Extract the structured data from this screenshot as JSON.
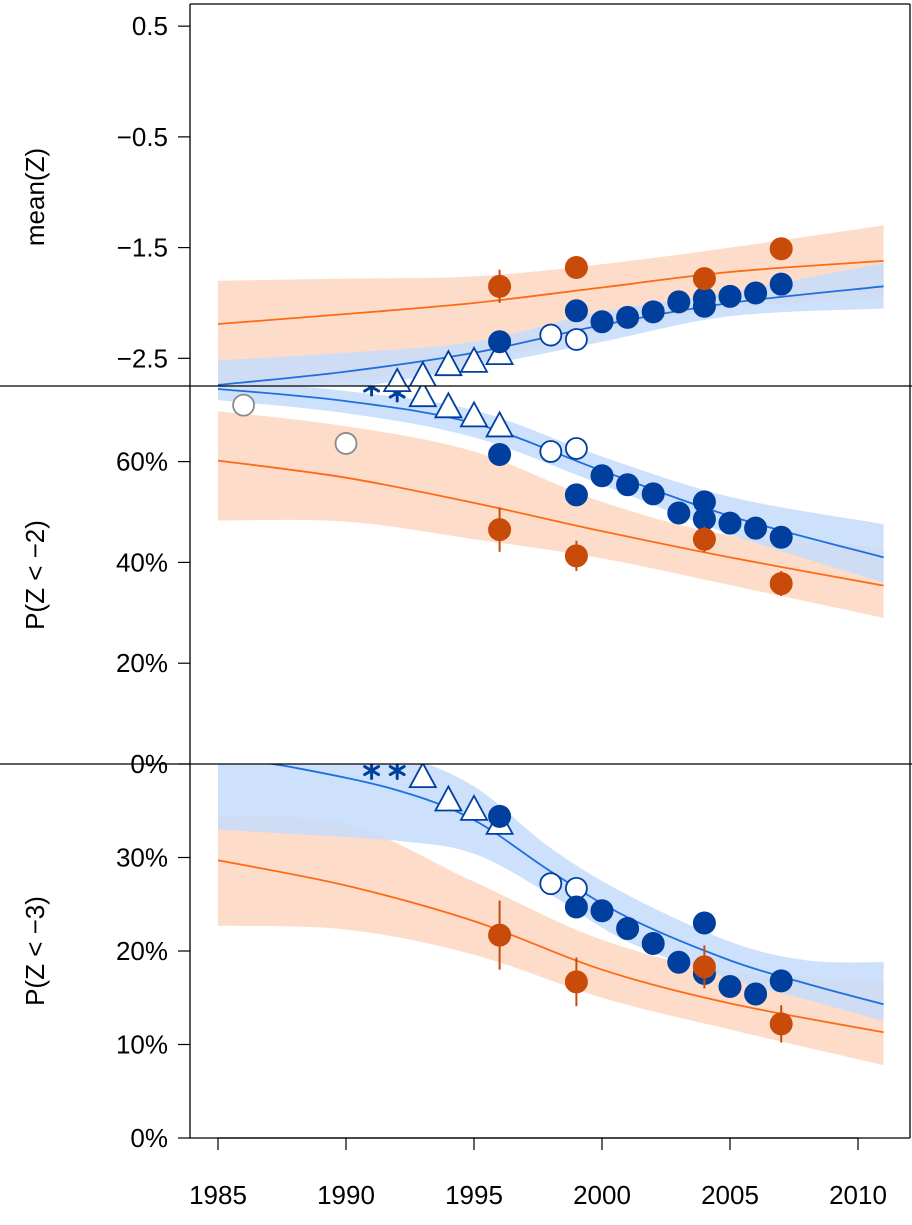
{
  "colors": {
    "blue_line": "#1f6fe0",
    "blue_band": "#c6dcfb",
    "blue_point": "#003f9e",
    "orange_line": "#ff6a13",
    "orange_band": "#fdd5bd",
    "orange_point": "#c84b0a",
    "grey_point": "#8a8a8a",
    "overlap_band": "#a9a7c8"
  },
  "chart_data": [
    {
      "type": "scatter",
      "panel": "top",
      "ylabel": "mean(Z)",
      "y_ticks": [
        "0.5",
        "−0.5",
        "−1.5",
        "−2.5"
      ],
      "y_tick_values": [
        0.5,
        -0.5,
        -1.5,
        -2.5
      ],
      "ylim": [
        -2.75,
        0.7
      ],
      "xlim": [
        1985,
        2011
      ],
      "curves": [
        {
          "color": "blue",
          "x": [
            1985,
            1990,
            1995,
            2000,
            2005,
            2011
          ],
          "y": [
            -2.74,
            -2.62,
            -2.45,
            -2.2,
            -2.0,
            -1.85
          ],
          "band_lo": [
            -2.95,
            -2.78,
            -2.58,
            -2.35,
            -2.12,
            -2.05
          ],
          "band_hi": [
            -2.52,
            -2.45,
            -2.35,
            -2.08,
            -1.9,
            -1.64
          ]
        },
        {
          "color": "orange",
          "x": [
            1985,
            1990,
            1995,
            2000,
            2005,
            2011
          ],
          "y": [
            -2.19,
            -2.1,
            -2.0,
            -1.86,
            -1.72,
            -1.62
          ],
          "band_lo": [
            -2.8,
            -2.7,
            -2.55,
            -2.25,
            -2.05,
            -1.95
          ],
          "band_hi": [
            -1.8,
            -1.78,
            -1.76,
            -1.65,
            -1.5,
            -1.3
          ]
        }
      ],
      "points": [
        {
          "marker": "triangle",
          "color": "blue",
          "x": [
            1992,
            1993,
            1994,
            1995,
            1996
          ],
          "y": [
            -2.73,
            -2.67,
            -2.57,
            -2.54,
            -2.47
          ]
        },
        {
          "marker": "open-circle",
          "color": "blue",
          "x": [
            1998,
            1999
          ],
          "y": [
            -2.29,
            -2.33
          ]
        },
        {
          "marker": "filled-circle",
          "color": "blue",
          "x": [
            1996,
            1999,
            2000,
            2001,
            2002,
            2003,
            2004,
            2004,
            2005,
            2006,
            2007
          ],
          "y": [
            -2.35,
            -2.07,
            -2.17,
            -2.13,
            -2.08,
            -1.99,
            -1.96,
            -2.03,
            -1.94,
            -1.91,
            -1.83
          ]
        },
        {
          "marker": "filled-circle",
          "color": "orange",
          "x": [
            1996,
            1999,
            2004,
            2007
          ],
          "y": [
            -1.85,
            -1.68,
            -1.78,
            -1.51
          ],
          "err": [
            0.15,
            0.07,
            0.07,
            0.06
          ]
        }
      ]
    },
    {
      "type": "scatter",
      "panel": "middle",
      "ylabel": "P(Z < −2)",
      "y_ticks": [
        "60%",
        "40%",
        "20%",
        "0%"
      ],
      "y_tick_values": [
        60,
        40,
        20,
        0
      ],
      "ylim": [
        0,
        75
      ],
      "xlim": [
        1985,
        2011
      ],
      "curves": [
        {
          "color": "blue",
          "x": [
            1985,
            1990,
            1995,
            2000,
            2005,
            2011
          ],
          "y": [
            74.4,
            72.0,
            67.6,
            58.2,
            49.2,
            41.0
          ],
          "band_lo": [
            72.2,
            69.6,
            64.8,
            55.4,
            45.6,
            36.0
          ],
          "band_hi": [
            76.4,
            74.0,
            70.2,
            61.0,
            53.0,
            47.6
          ]
        },
        {
          "color": "orange",
          "x": [
            1985,
            1990,
            1995,
            2000,
            2005,
            2011
          ],
          "y": [
            60.2,
            56.8,
            51.8,
            46.2,
            41.0,
            35.4
          ],
          "band_lo": [
            48.3,
            48.1,
            44.6,
            40.8,
            35.5,
            29.0
          ],
          "band_hi": [
            70.0,
            67.0,
            62.0,
            52.0,
            45.4,
            43.0
          ]
        }
      ],
      "points": [
        {
          "marker": "open-circle",
          "color": "grey",
          "x": [
            1986,
            1990
          ],
          "y": [
            71.2,
            63.6
          ],
          "err": [
            0,
            1.8
          ]
        },
        {
          "marker": "star",
          "color": "blue",
          "x": [
            1991,
            1992
          ],
          "y": [
            74.8,
            73.6
          ]
        },
        {
          "marker": "triangle",
          "color": "blue",
          "x": [
            1992,
            1993,
            1994,
            1995,
            1996
          ],
          "y": [
            75.8,
            72.8,
            70.6,
            68.8,
            66.8
          ]
        },
        {
          "marker": "open-circle",
          "color": "blue",
          "x": [
            1998,
            1999
          ],
          "y": [
            62.0,
            62.6
          ]
        },
        {
          "marker": "filled-circle",
          "color": "blue",
          "x": [
            1996,
            1999,
            2000,
            2001,
            2002,
            2003,
            2004,
            2004,
            2005,
            2006,
            2007
          ],
          "y": [
            61.4,
            53.4,
            57.2,
            55.4,
            53.6,
            49.8,
            52.0,
            48.6,
            47.8,
            46.8,
            45.0
          ]
        },
        {
          "marker": "filled-circle",
          "color": "orange",
          "x": [
            1996,
            1999,
            2004,
            2007
          ],
          "y": [
            46.5,
            41.3,
            44.6,
            35.8
          ],
          "err": [
            4.4,
            3.0,
            2.5,
            2.5
          ]
        }
      ]
    },
    {
      "type": "scatter",
      "panel": "bottom",
      "ylabel": "P(Z < −3)",
      "y_ticks": [
        "30%",
        "20%",
        "10%",
        "0%"
      ],
      "y_tick_values": [
        30,
        20,
        10,
        0
      ],
      "ylim": [
        0,
        40
      ],
      "xlim": [
        1985,
        2011
      ],
      "x_ticks": [
        "1985",
        "1990",
        "1995",
        "2000",
        "2005",
        "2010"
      ],
      "x_tick_values": [
        1985,
        1990,
        1995,
        2000,
        2005,
        2010
      ],
      "curves": [
        {
          "color": "blue",
          "x": [
            1985,
            1988,
            1992,
            1995,
            1998,
            2001,
            2005,
            2008,
            2011
          ],
          "y": [
            40.8,
            39.6,
            37.2,
            34.0,
            28.5,
            23.6,
            19.0,
            16.5,
            14.3
          ],
          "band_lo": [
            33.0,
            32.5,
            31.8,
            30.4,
            26.0,
            21.0,
            17.0,
            14.8,
            12.5
          ],
          "band_hi": [
            44.0,
            43.0,
            41.0,
            37.6,
            31.0,
            26.0,
            21.0,
            19.0,
            18.8
          ]
        },
        {
          "color": "orange",
          "x": [
            1985,
            1990,
            1995,
            2000,
            2005,
            2011
          ],
          "y": [
            29.7,
            27.0,
            23.2,
            18.0,
            14.4,
            11.3
          ],
          "band_lo": [
            22.7,
            22.3,
            19.6,
            15.0,
            11.6,
            7.8
          ],
          "band_hi": [
            34.4,
            33.6,
            27.4,
            21.2,
            17.8,
            16.8
          ]
        }
      ],
      "points": [
        {
          "marker": "star",
          "color": "blue",
          "x": [
            1991,
            1992
          ],
          "y": [
            39.3,
            39.3
          ]
        },
        {
          "marker": "triangle",
          "color": "blue",
          "x": [
            1993,
            1994,
            1995,
            1996
          ],
          "y": [
            38.5,
            36.0,
            35.0,
            33.5
          ]
        },
        {
          "marker": "open-circle",
          "color": "blue",
          "x": [
            1998,
            1999
          ],
          "y": [
            27.2,
            26.7
          ]
        },
        {
          "marker": "filled-circle",
          "color": "blue",
          "x": [
            1996,
            1999,
            2000,
            2001,
            2002,
            2003,
            2004,
            2004,
            2005,
            2006,
            2007
          ],
          "y": [
            34.4,
            24.7,
            24.3,
            22.4,
            20.8,
            18.8,
            23.0,
            17.6,
            16.2,
            15.4,
            16.8
          ],
          "err": [
            1.2,
            1.0,
            0,
            0,
            0,
            0,
            1.2,
            0,
            0,
            0,
            1.0
          ]
        },
        {
          "marker": "filled-circle",
          "color": "orange",
          "x": [
            1996,
            1999,
            2004,
            2007
          ],
          "y": [
            21.7,
            16.7,
            18.3,
            12.2
          ],
          "err": [
            3.7,
            2.6,
            2.3,
            2.0
          ]
        }
      ]
    }
  ]
}
